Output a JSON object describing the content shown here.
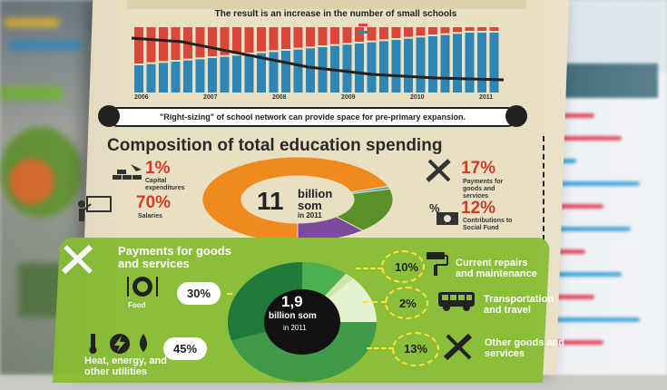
{
  "upper_chart": {
    "subtitle": "The result is an increase in the number of small schools",
    "years": [
      "2006",
      "2007",
      "2008",
      "2009",
      "2010",
      "2011"
    ],
    "colors": {
      "red": "#d8473a",
      "blue": "#2f86b4"
    }
  },
  "sighting_banner": "\"Right-sizing\" of school network can provide space for pre-primary expansion.",
  "composition": {
    "title": "Composition of total education spending",
    "center": {
      "number": "11",
      "unit": "billion som",
      "year": "in 2011"
    },
    "items": [
      {
        "pct": "1%",
        "label": "Capital expenditures",
        "icon": "brick-trowel-icon"
      },
      {
        "pct": "70%",
        "label": "Salaries",
        "icon": "teacher-board-icon"
      },
      {
        "pct": "17%",
        "label": "Payments for goods and services",
        "icon": "ruler-pencil-icon"
      },
      {
        "pct": "12%",
        "label": "Contributions to Social Fund",
        "icon": "percent-money-icon"
      }
    ],
    "colors": {
      "salaries": "#ef8a1f",
      "goods": "#5b8f2a",
      "social": "#7a4b9c",
      "capital": "#3aa6b9"
    }
  },
  "payments": {
    "title": "Payments for goods and services",
    "center": {
      "number": "1,9",
      "unit": "billion som",
      "year": "in 2011"
    },
    "left_items": [
      {
        "pct": "30%",
        "label": "Food",
        "icon": "plate-cutlery-icon"
      },
      {
        "pct": "45%",
        "label": "Heat, energy, and other utilities",
        "icon": "thermometer-bolt-drop-icon"
      }
    ],
    "right_items": [
      {
        "pct": "10%",
        "label": "Current repairs and maintenance",
        "icon": "paint-roller-icon"
      },
      {
        "pct": "2%",
        "label": "Transportation and travel",
        "icon": "bus-icon"
      },
      {
        "pct": "13%",
        "label": "Other goods and services",
        "icon": "tools-icon"
      }
    ],
    "colors": {
      "panel": "#8bbf3a",
      "dark": "#1f7a3a",
      "mid": "#3f9a4a",
      "light": "#cde8a8"
    }
  }
}
